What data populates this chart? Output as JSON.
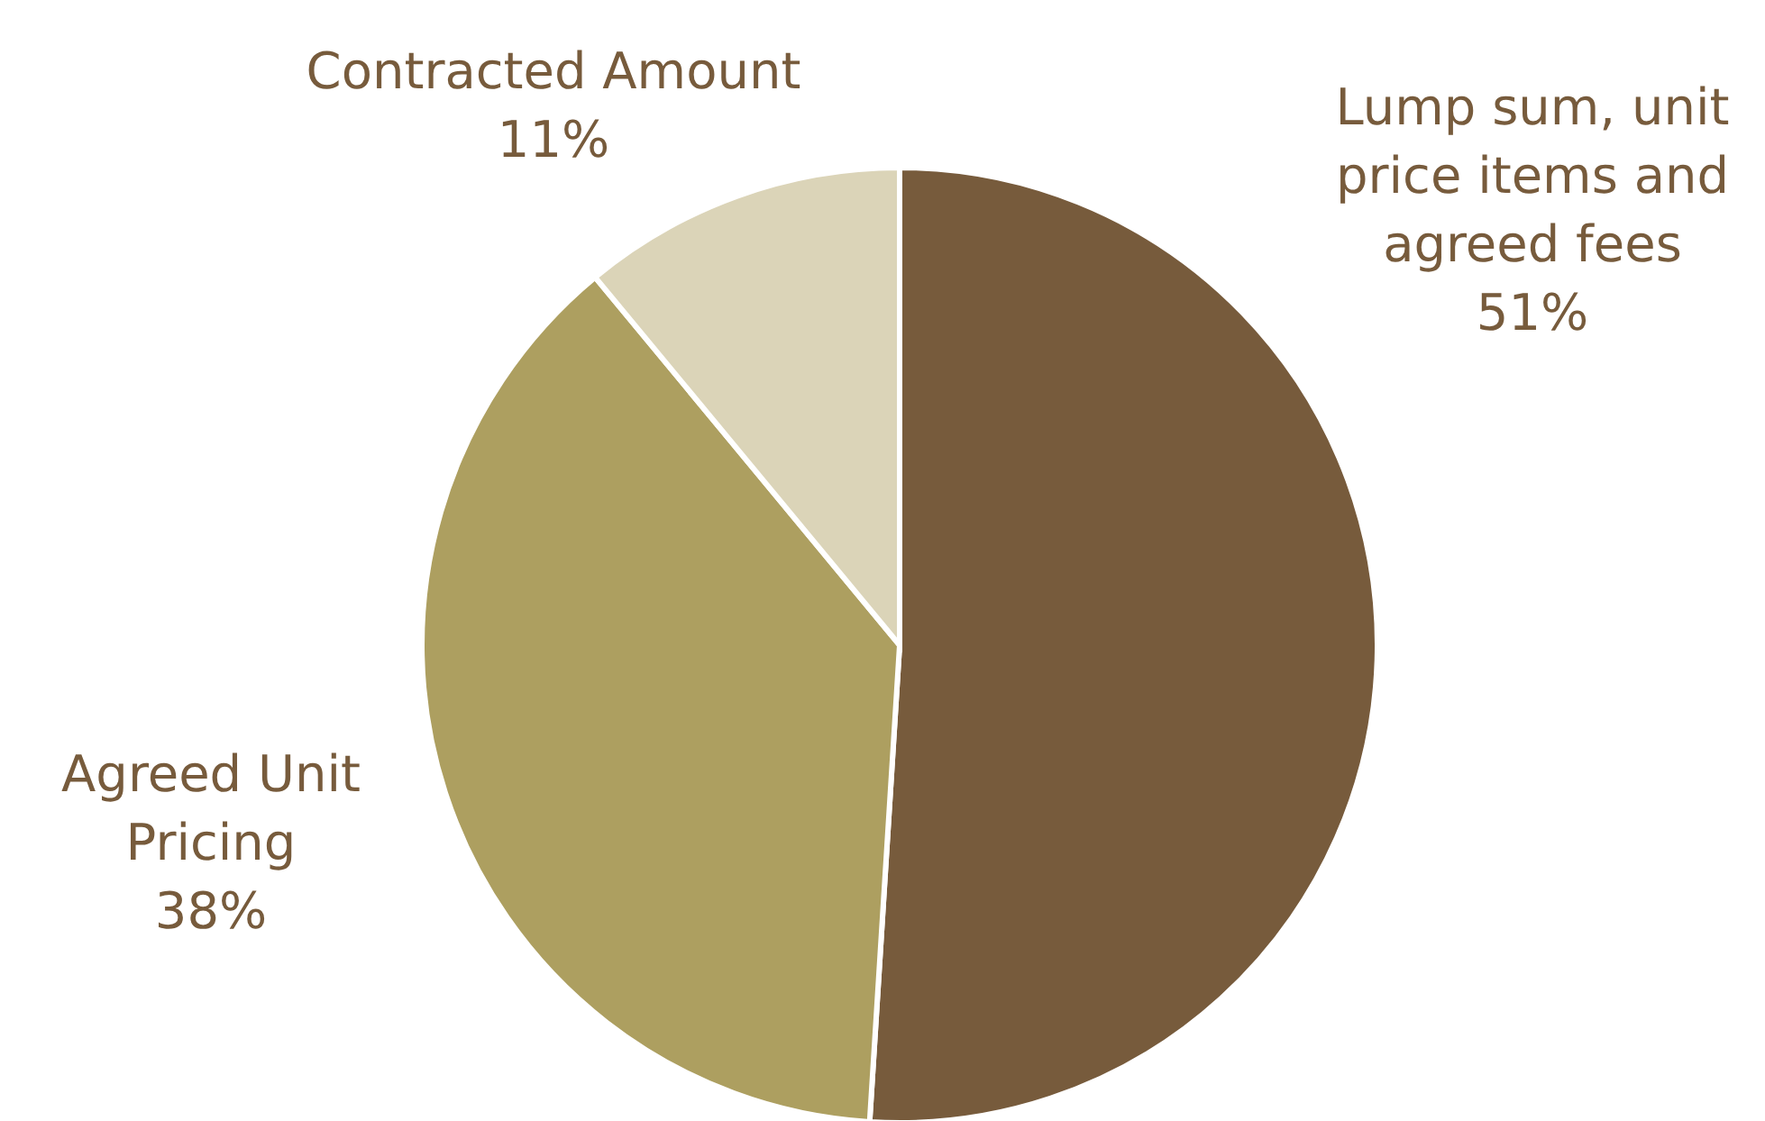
{
  "chart_data": {
    "type": "pie",
    "categories": [
      "Lump sum, unit price items and agreed fees",
      "Agreed Unit Pricing",
      "Contracted Amount"
    ],
    "values": [
      51,
      38,
      11
    ],
    "colors": [
      "#775b3c",
      "#ad9f60",
      "#dbd4b8"
    ],
    "value_labels": [
      "51%",
      "38%",
      "11%"
    ]
  }
}
